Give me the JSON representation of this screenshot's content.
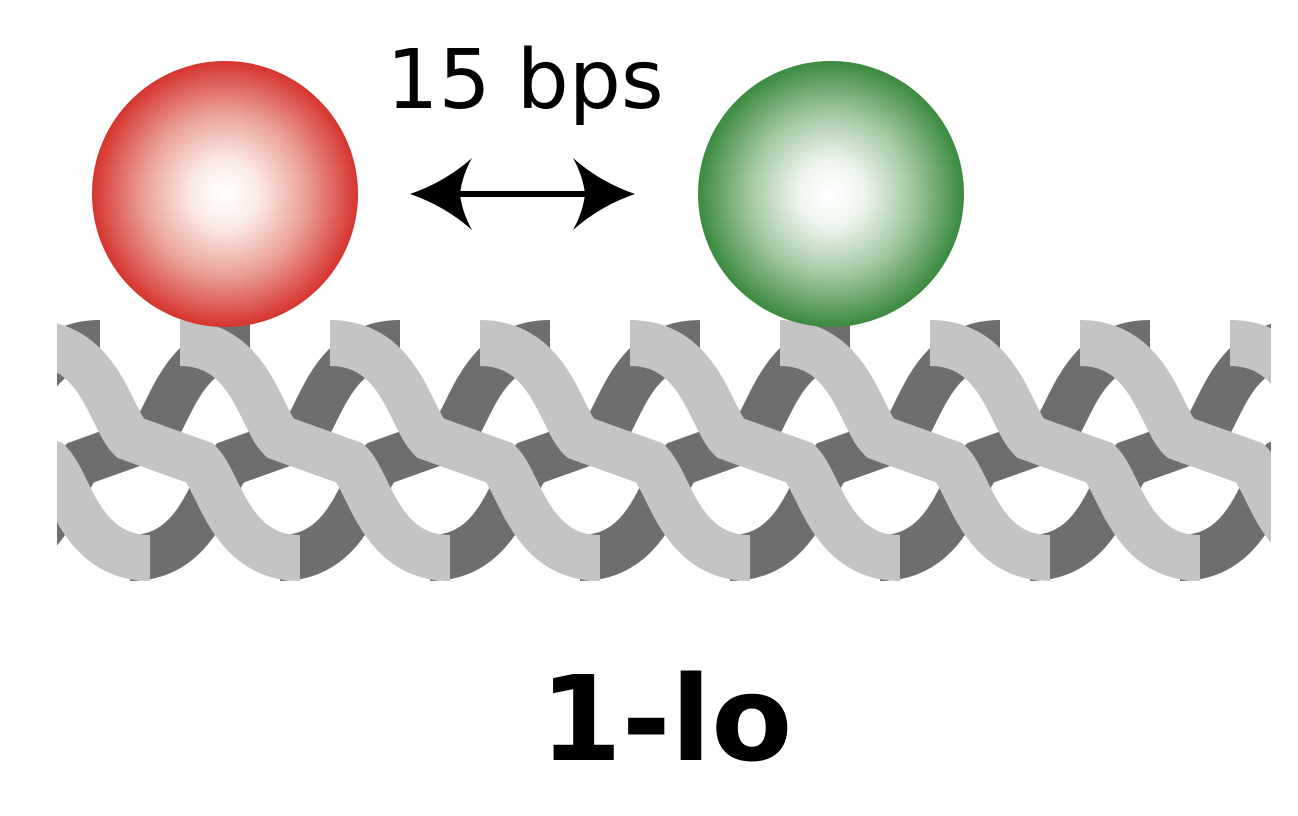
{
  "distance_label": "15 bps",
  "construct_label": "1-lo",
  "colors": {
    "red_dye": "#d6342e",
    "green_dye": "#3a8a3e",
    "strand_dark": "#6e6e6e",
    "strand_light": "#c4c4c4",
    "arrow": "#000000"
  },
  "icons": [
    "red-fluorophore-sphere",
    "green-fluorophore-sphere",
    "double-headed-arrow-icon",
    "dna-double-helix"
  ]
}
